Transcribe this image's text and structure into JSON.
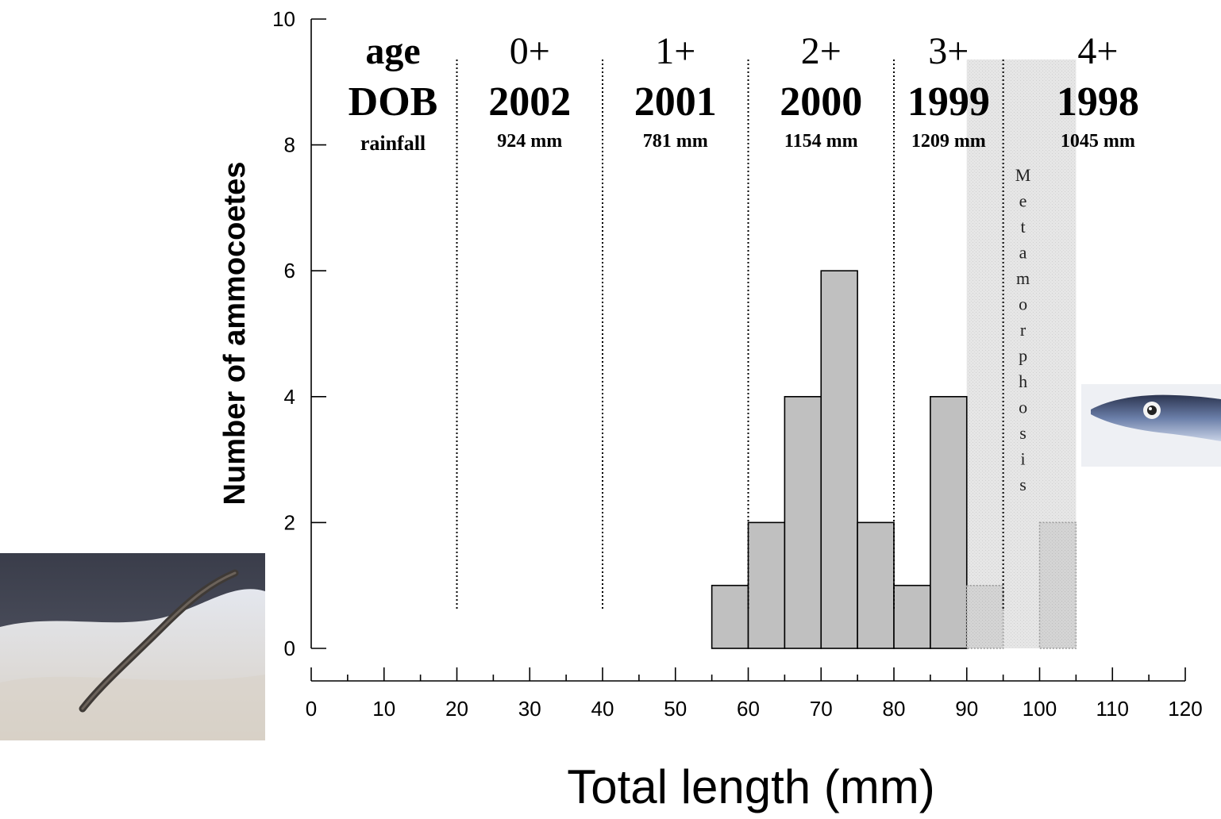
{
  "chart_data": {
    "type": "bar",
    "title": "",
    "xlabel": "Total length (mm)",
    "ylabel": "Number of ammocoetes",
    "xlim": [
      0,
      120
    ],
    "ylim": [
      0,
      10
    ],
    "x_ticks": [
      0,
      10,
      20,
      30,
      40,
      50,
      60,
      70,
      80,
      90,
      100,
      110,
      120
    ],
    "x_minor_step": 5,
    "y_ticks": [
      0,
      2,
      4,
      6,
      8,
      10
    ],
    "grid": false,
    "bins": [
      {
        "x0": 55,
        "x1": 60,
        "value": 1,
        "style": "ammocoete"
      },
      {
        "x0": 60,
        "x1": 65,
        "value": 2,
        "style": "ammocoete"
      },
      {
        "x0": 65,
        "x1": 70,
        "value": 4,
        "style": "ammocoete"
      },
      {
        "x0": 70,
        "x1": 75,
        "value": 6,
        "style": "ammocoete"
      },
      {
        "x0": 75,
        "x1": 80,
        "value": 2,
        "style": "ammocoete"
      },
      {
        "x0": 80,
        "x1": 85,
        "value": 1,
        "style": "ammocoete"
      },
      {
        "x0": 85,
        "x1": 90,
        "value": 4,
        "style": "ammocoete"
      },
      {
        "x0": 90,
        "x1": 95,
        "value": 1,
        "style": "metamorphosing"
      },
      {
        "x0": 100,
        "x1": 105,
        "value": 2,
        "style": "metamorphosing"
      }
    ],
    "age_dividers": [
      20,
      40,
      60,
      80,
      95
    ],
    "shaded_region": {
      "x0": 90,
      "x1": 105,
      "label": "Metamorphosis"
    },
    "row_headers": {
      "age": "age",
      "dob": "DOB",
      "rainfall": "rainfall"
    },
    "age_classes": [
      {
        "age": "0+",
        "dob": "2002",
        "rainfall": "924 mm",
        "x_center": 30
      },
      {
        "age": "1+",
        "dob": "2001",
        "rainfall": "781 mm",
        "x_center": 50
      },
      {
        "age": "2+",
        "dob": "2000",
        "rainfall": "1154 mm",
        "x_center": 70
      },
      {
        "age": "3+",
        "dob": "1999",
        "rainfall": "1209 mm",
        "x_center": 87.5
      },
      {
        "age": "4+",
        "dob": "1998",
        "rainfall": "1045 mm",
        "x_center": 108
      }
    ],
    "colors": {
      "bar": "#c0c0c0",
      "metamorphosing_bar": "#d6d6d6",
      "shade": "#ececec",
      "axis": "#000000"
    }
  },
  "photos": {
    "left": {
      "icon": "ammocoete-burrowing-photo"
    },
    "right": {
      "icon": "metamorphosed-lamprey-head-photo"
    }
  }
}
